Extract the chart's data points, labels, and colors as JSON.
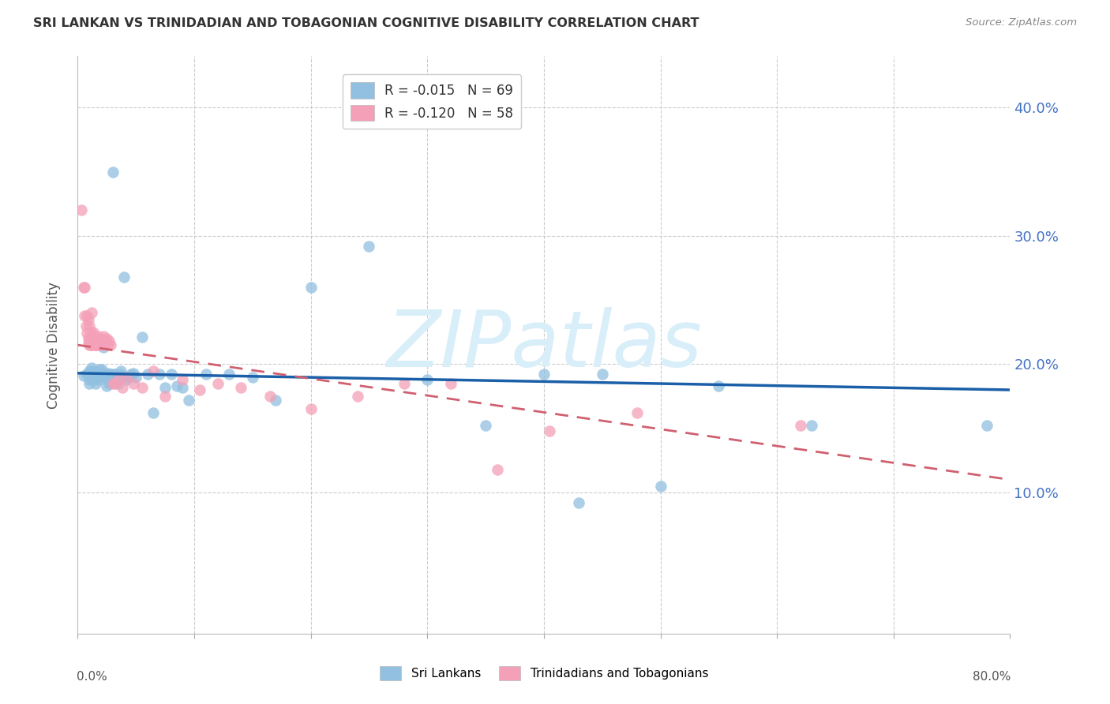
{
  "title": "SRI LANKAN VS TRINIDADIAN AND TOBAGONIAN COGNITIVE DISABILITY CORRELATION CHART",
  "source": "Source: ZipAtlas.com",
  "ylabel": "Cognitive Disability",
  "xlim": [
    0.0,
    0.8
  ],
  "ylim": [
    -0.01,
    0.44
  ],
  "blue_color": "#91c0e0",
  "pink_color": "#f4a0b8",
  "trendline_blue": "#1a5fa8",
  "trendline_pink": "#d06070",
  "watermark_text": "ZIPatlas",
  "watermark_color": "#d8eef8",
  "legend_blue_label": "R = -0.015   N = 69",
  "legend_pink_label": "R = -0.120   N = 58",
  "bottom_legend_blue": "Sri Lankans",
  "bottom_legend_pink": "Trinidadians and Tobagonians",
  "sri_lankans_x": [
    0.005,
    0.008,
    0.01,
    0.01,
    0.01,
    0.01,
    0.012,
    0.012,
    0.013,
    0.013,
    0.014,
    0.015,
    0.015,
    0.016,
    0.017,
    0.018,
    0.018,
    0.019,
    0.02,
    0.021,
    0.022,
    0.022,
    0.023,
    0.024,
    0.025,
    0.025,
    0.026,
    0.027,
    0.028,
    0.029,
    0.03,
    0.031,
    0.032,
    0.033,
    0.034,
    0.035,
    0.036,
    0.037,
    0.038,
    0.04,
    0.042,
    0.044,
    0.046,
    0.048,
    0.05,
    0.055,
    0.06,
    0.065,
    0.07,
    0.075,
    0.08,
    0.085,
    0.09,
    0.095,
    0.11,
    0.13,
    0.15,
    0.17,
    0.2,
    0.25,
    0.3,
    0.35,
    0.4,
    0.43,
    0.45,
    0.5,
    0.55,
    0.63,
    0.78
  ],
  "sri_lankans_y": [
    0.191,
    0.192,
    0.195,
    0.188,
    0.185,
    0.193,
    0.197,
    0.19,
    0.188,
    0.195,
    0.192,
    0.19,
    0.185,
    0.193,
    0.19,
    0.192,
    0.188,
    0.196,
    0.191,
    0.196,
    0.192,
    0.213,
    0.19,
    0.192,
    0.183,
    0.19,
    0.193,
    0.185,
    0.186,
    0.192,
    0.35,
    0.192,
    0.192,
    0.187,
    0.19,
    0.185,
    0.192,
    0.195,
    0.191,
    0.268,
    0.188,
    0.19,
    0.192,
    0.193,
    0.19,
    0.221,
    0.192,
    0.162,
    0.192,
    0.182,
    0.192,
    0.183,
    0.182,
    0.172,
    0.192,
    0.192,
    0.19,
    0.172,
    0.26,
    0.292,
    0.188,
    0.152,
    0.192,
    0.092,
    0.192,
    0.105,
    0.183,
    0.152,
    0.152
  ],
  "trinidadians_x": [
    0.003,
    0.005,
    0.006,
    0.006,
    0.007,
    0.008,
    0.008,
    0.009,
    0.009,
    0.009,
    0.01,
    0.01,
    0.01,
    0.011,
    0.011,
    0.012,
    0.012,
    0.012,
    0.013,
    0.013,
    0.014,
    0.015,
    0.016,
    0.016,
    0.017,
    0.018,
    0.019,
    0.02,
    0.021,
    0.022,
    0.023,
    0.024,
    0.025,
    0.026,
    0.027,
    0.028,
    0.03,
    0.032,
    0.035,
    0.038,
    0.042,
    0.048,
    0.055,
    0.065,
    0.075,
    0.09,
    0.105,
    0.12,
    0.14,
    0.165,
    0.2,
    0.24,
    0.28,
    0.32,
    0.36,
    0.405,
    0.48,
    0.62
  ],
  "trinidadians_y": [
    0.32,
    0.26,
    0.26,
    0.238,
    0.23,
    0.238,
    0.224,
    0.235,
    0.22,
    0.216,
    0.22,
    0.215,
    0.23,
    0.215,
    0.225,
    0.22,
    0.24,
    0.215,
    0.225,
    0.222,
    0.215,
    0.215,
    0.215,
    0.22,
    0.222,
    0.215,
    0.215,
    0.22,
    0.218,
    0.222,
    0.215,
    0.218,
    0.22,
    0.215,
    0.218,
    0.215,
    0.185,
    0.185,
    0.188,
    0.182,
    0.19,
    0.185,
    0.182,
    0.195,
    0.175,
    0.188,
    0.18,
    0.185,
    0.182,
    0.175,
    0.165,
    0.175,
    0.185,
    0.185,
    0.118,
    0.148,
    0.162,
    0.152
  ]
}
